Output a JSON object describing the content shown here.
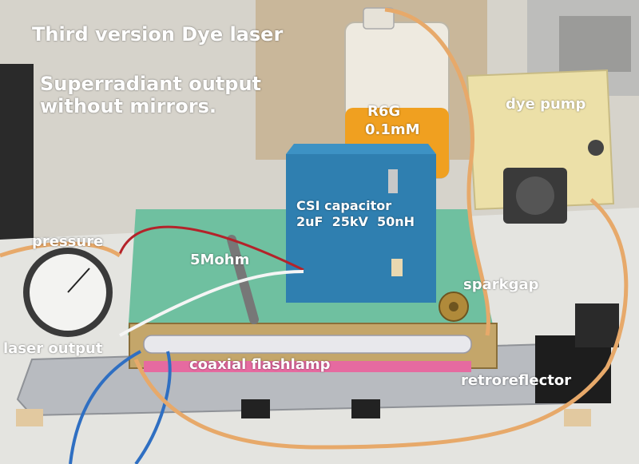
{
  "labels": {
    "title": "Third version Dye laser",
    "subtitle_line1": "Superradiant output",
    "subtitle_line2": "without mirrors.",
    "dye_line1": "R6G",
    "dye_line2": "0.1mM",
    "dye_pump": "dye pump",
    "capacitor_line1": "CSI capacitor",
    "capacitor_line2": "2uF  25kV  50nH",
    "pressure": "pressure",
    "resistor": "5Mohm",
    "sparkgap": "sparkgap",
    "laser_output": "laser output",
    "flashlamp": "coaxial flashlamp",
    "retroreflector": "retroreflector"
  },
  "colors": {
    "wall": "#d6d3cb",
    "table": "#e4e4e0",
    "capacitor": "#2f7fb0",
    "foam": "#6fc0a0",
    "dye": "#f0a020",
    "pump": "#ece0a8",
    "tubing": "#e7a96a",
    "label_text": "#ffffff"
  },
  "icons": {
    "gauge": "pressure-gauge-icon",
    "jug": "dye-container-icon"
  }
}
